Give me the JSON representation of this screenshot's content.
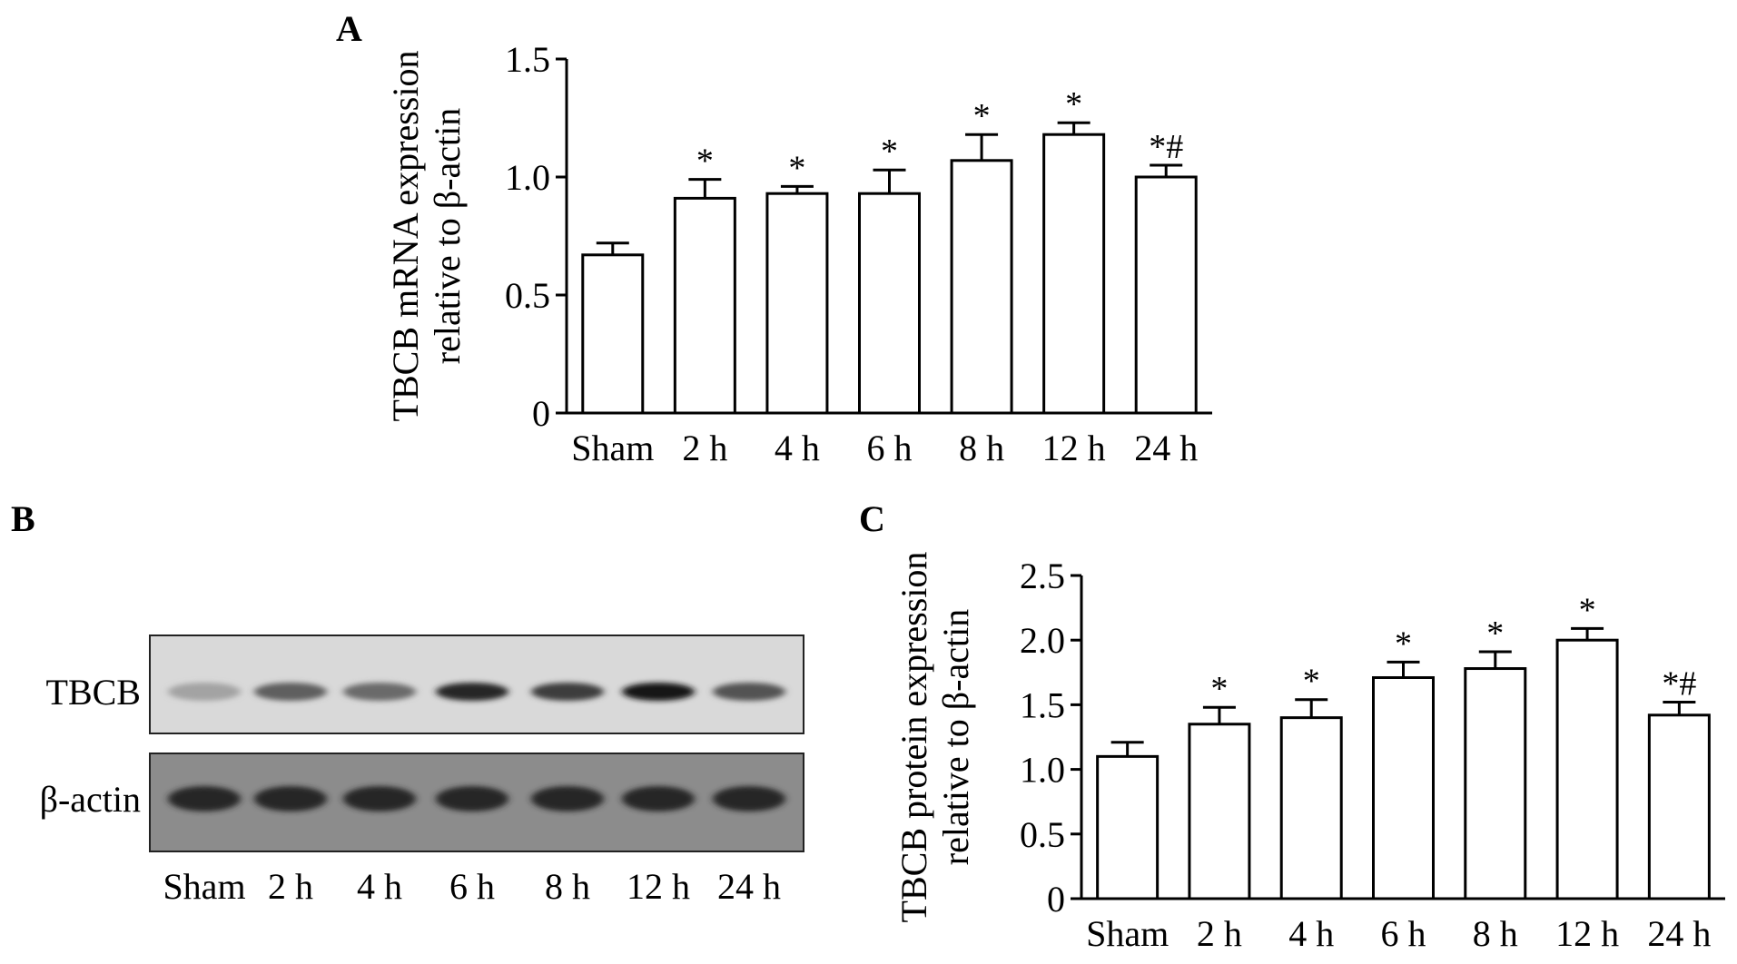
{
  "panels": {
    "a": {
      "letter": "A"
    },
    "b": {
      "letter": "B"
    },
    "c": {
      "letter": "C"
    }
  },
  "chart_data": [
    {
      "id": "A",
      "type": "bar",
      "categories": [
        "Sham",
        "2 h",
        "4 h",
        "6 h",
        "8 h",
        "12 h",
        "24 h"
      ],
      "values": [
        0.67,
        0.91,
        0.93,
        0.93,
        1.07,
        1.18,
        1.0
      ],
      "errors": [
        0.05,
        0.08,
        0.03,
        0.1,
        0.11,
        0.05,
        0.05
      ],
      "annotations": [
        "",
        "*",
        "*",
        "*",
        "*",
        "*",
        "*#"
      ],
      "ylabel": [
        "TBCB mRNA expression",
        "relative to β-actin"
      ],
      "ylim": [
        0,
        1.5
      ],
      "yticks": [
        0,
        0.5,
        1.0,
        1.5
      ],
      "ytick_labels": [
        "0",
        "0.5",
        "1.0",
        "1.5"
      ]
    },
    {
      "id": "C",
      "type": "bar",
      "categories": [
        "Sham",
        "2 h",
        "4 h",
        "6 h",
        "8 h",
        "12 h",
        "24 h"
      ],
      "values": [
        1.1,
        1.35,
        1.4,
        1.71,
        1.78,
        2.0,
        1.42
      ],
      "errors": [
        0.11,
        0.13,
        0.14,
        0.12,
        0.13,
        0.09,
        0.1
      ],
      "annotations": [
        "",
        "*",
        "*",
        "*",
        "*",
        "*",
        "*#"
      ],
      "ylabel": [
        "TBCB protein expression",
        "relative to β-actin"
      ],
      "ylim": [
        0,
        2.5
      ],
      "yticks": [
        0,
        0.5,
        1.0,
        1.5,
        2.0,
        2.5
      ],
      "ytick_labels": [
        "0",
        "0.5",
        "1.0",
        "1.5",
        "2.0",
        "2.5"
      ]
    }
  ],
  "blot": {
    "rows": [
      {
        "label": "TBCB",
        "intensity": [
          0.4,
          0.7,
          0.65,
          0.95,
          0.85,
          1.0,
          0.75
        ]
      },
      {
        "label": "β-actin",
        "intensity": [
          0.95,
          0.95,
          0.95,
          0.95,
          0.95,
          0.95,
          0.95
        ]
      }
    ],
    "lanes": [
      "Sham",
      "2 h",
      "4 h",
      "6 h",
      "8 h",
      "12 h",
      "24 h"
    ]
  }
}
